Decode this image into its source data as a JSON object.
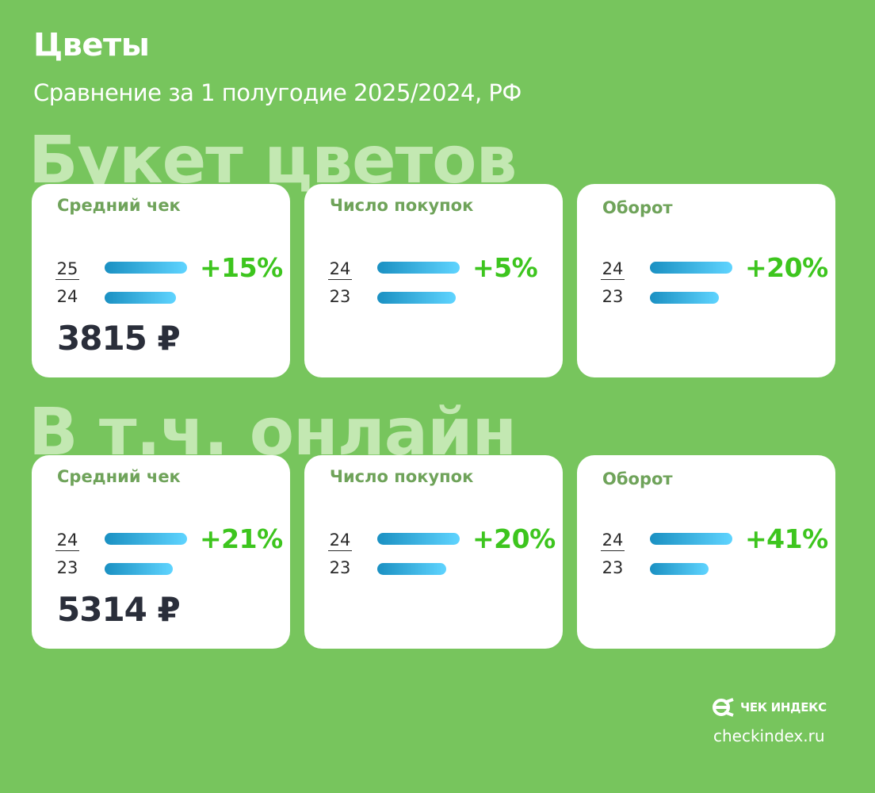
{
  "title": "Цветы",
  "subtitle": "Сравнение за 1 полугодие 2025/2024, РФ",
  "colors": {
    "background": "#77c55d",
    "heading_watermark": "#c3e8b2",
    "card": "#ffffff",
    "card_label": "#6fa35a",
    "percent": "#3dc51e",
    "bar_start": "#1a90c2",
    "bar_end": "#5fd4ff"
  },
  "brand": {
    "name": "ЧЕК ИНДЕКС",
    "site": "checkindex.ru",
    "logo_icon": "checkindex-logo-icon"
  },
  "chart_data": [
    {
      "type": "bar",
      "title": "Букет цветов",
      "metrics": [
        {
          "label": "Средний чек",
          "years": [
            "25",
            "24"
          ],
          "change": "+15%",
          "bar_values": [
            1.15,
            1.0
          ],
          "value": "3815 ₽"
        },
        {
          "label": "Число покупок",
          "years": [
            "24",
            "23"
          ],
          "change": "+5%",
          "bar_values": [
            1.05,
            1.0
          ]
        },
        {
          "label": "Оборот",
          "years": [
            "24",
            "23"
          ],
          "change": "+20%",
          "bar_values": [
            1.2,
            1.0
          ]
        }
      ]
    },
    {
      "type": "bar",
      "title": "В т.ч. онлайн",
      "metrics": [
        {
          "label": "Средний чек",
          "years": [
            "24",
            "23"
          ],
          "change": "+21%",
          "bar_values": [
            1.21,
            1.0
          ],
          "value": "5314 ₽"
        },
        {
          "label": "Число покупок",
          "years": [
            "24",
            "23"
          ],
          "change": "+20%",
          "bar_values": [
            1.2,
            1.0
          ]
        },
        {
          "label": "Оборот",
          "years": [
            "24",
            "23"
          ],
          "change": "+41%",
          "bar_values": [
            1.41,
            1.0
          ]
        }
      ]
    }
  ]
}
